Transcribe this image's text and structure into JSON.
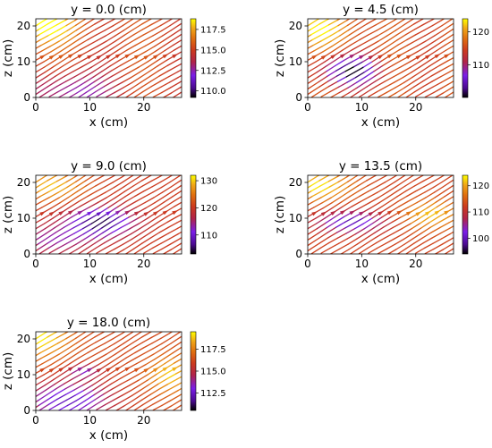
{
  "chart_data": [
    {
      "type": "streamplot",
      "title": "y = 0.0 (cm)",
      "xlabel": "x (cm)",
      "ylabel": "z (cm)",
      "xlim": [
        0,
        27
      ],
      "ylim": [
        0,
        22
      ],
      "xticks": [
        0,
        10,
        20
      ],
      "yticks": [
        0,
        10,
        20
      ],
      "colormap": "gnuplot",
      "colorbar": {
        "min": 109.2,
        "max": 118.8,
        "ticks": [
          "110.0",
          "112.5",
          "115.0",
          "117.5"
        ]
      },
      "flow_direction": "diagonal toward upper-right",
      "regions": {
        "high_color_region": "upper-left corner (yellow)",
        "low_color_region": "lower-left (purple)"
      }
    },
    {
      "type": "streamplot",
      "title": "y = 4.5 (cm)",
      "xlabel": "x (cm)",
      "ylabel": "z (cm)",
      "xlim": [
        0,
        27
      ],
      "ylim": [
        0,
        22
      ],
      "xticks": [
        0,
        10,
        20
      ],
      "yticks": [
        0,
        10,
        20
      ],
      "colormap": "gnuplot",
      "colorbar": {
        "min": 100,
        "max": 124,
        "ticks": [
          "110",
          "120"
        ]
      },
      "flow_direction": "diagonal toward upper-right",
      "regions": {
        "high_color_region": "upper-left (yellow)",
        "low_color_region": "center around x=8, z=8 (purple/black)"
      }
    },
    {
      "type": "streamplot",
      "title": "y = 9.0 (cm)",
      "xlabel": "x (cm)",
      "ylabel": "z (cm)",
      "xlim": [
        0,
        27
      ],
      "ylim": [
        0,
        22
      ],
      "xticks": [
        0,
        10,
        20
      ],
      "yticks": [
        0,
        10,
        20
      ],
      "colormap": "gnuplot",
      "colorbar": {
        "min": 103,
        "max": 132,
        "ticks": [
          "110",
          "120",
          "130"
        ]
      },
      "flow_direction": "diagonal toward upper-right",
      "regions": {
        "high_color_region": "upper-left (yellow)",
        "low_color_region": "center around x=13, z=10 (purple/black)"
      }
    },
    {
      "type": "streamplot",
      "title": "y = 13.5 (cm)",
      "xlabel": "x (cm)",
      "ylabel": "z (cm)",
      "xlim": [
        0,
        27
      ],
      "ylim": [
        0,
        22
      ],
      "xticks": [
        0,
        10,
        20
      ],
      "yticks": [
        0,
        10,
        20
      ],
      "colormap": "gnuplot",
      "colorbar": {
        "min": 94,
        "max": 124,
        "ticks": [
          "100",
          "110",
          "120"
        ]
      },
      "flow_direction": "diagonal toward upper-right",
      "regions": {
        "high_color_region": "upper-left and right-center (yellow)",
        "low_color_region": "center around x=8, z=10 (purple)"
      }
    },
    {
      "type": "streamplot",
      "title": "y = 18.0 (cm)",
      "xlabel": "x (cm)",
      "ylabel": "z (cm)",
      "xlim": [
        0,
        27
      ],
      "ylim": [
        0,
        22
      ],
      "xticks": [
        0,
        10,
        20
      ],
      "yticks": [
        0,
        10,
        20
      ],
      "colormap": "gnuplot",
      "colorbar": {
        "min": 110.5,
        "max": 119.5,
        "ticks": [
          "112.5",
          "115.0",
          "117.5"
        ]
      },
      "flow_direction": "diagonal toward upper-right",
      "regions": {
        "high_color_region": "upper-left and right (yellow)",
        "low_color_region": "lower-left and x=8-10, z=11 (purple)"
      }
    }
  ]
}
